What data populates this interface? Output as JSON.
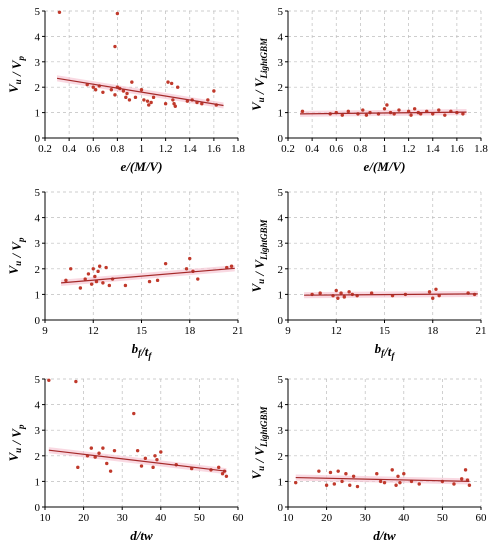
{
  "colors": {
    "point": "#c0392b",
    "trend": "#a52a2a",
    "band": "#f6c9d6",
    "grid": "#bdbdbd",
    "axis": "#000000"
  },
  "chart_data": [
    {
      "type": "scatter",
      "xlabel": "e/(M/V)",
      "ylabel": "Vu / Vp",
      "xlim": [
        0.2,
        1.8
      ],
      "ylim": [
        0,
        5
      ],
      "xticks": [
        "0.2",
        "0.4",
        "0.6",
        "0.8",
        "1",
        "1.2",
        "1.4",
        "1.6",
        "1.8"
      ],
      "yticks": [
        "0",
        "1",
        "2",
        "3",
        "4",
        "5"
      ],
      "grid": true,
      "trend": [
        [
          0.3,
          2.35
        ],
        [
          1.68,
          1.28
        ]
      ],
      "points": [
        [
          0.32,
          4.95
        ],
        [
          0.8,
          4.9
        ],
        [
          0.78,
          3.6
        ],
        [
          0.55,
          2.1
        ],
        [
          0.6,
          2.0
        ],
        [
          0.62,
          1.9
        ],
        [
          0.65,
          2.05
        ],
        [
          0.68,
          1.8
        ],
        [
          0.75,
          1.9
        ],
        [
          0.78,
          1.7
        ],
        [
          0.8,
          2.0
        ],
        [
          0.82,
          1.95
        ],
        [
          0.85,
          1.85
        ],
        [
          0.87,
          1.6
        ],
        [
          0.88,
          1.75
        ],
        [
          0.9,
          1.5
        ],
        [
          0.92,
          2.2
        ],
        [
          0.95,
          1.6
        ],
        [
          1.0,
          1.9
        ],
        [
          1.02,
          1.5
        ],
        [
          1.05,
          1.45
        ],
        [
          1.06,
          1.3
        ],
        [
          1.08,
          1.4
        ],
        [
          1.1,
          1.6
        ],
        [
          1.2,
          1.35
        ],
        [
          1.22,
          2.2
        ],
        [
          1.25,
          2.15
        ],
        [
          1.26,
          1.5
        ],
        [
          1.27,
          1.35
        ],
        [
          1.28,
          1.25
        ],
        [
          1.3,
          2.0
        ],
        [
          1.38,
          1.45
        ],
        [
          1.42,
          1.5
        ],
        [
          1.46,
          1.4
        ],
        [
          1.5,
          1.35
        ],
        [
          1.55,
          1.5
        ],
        [
          1.6,
          1.85
        ],
        [
          1.62,
          1.3
        ]
      ]
    },
    {
      "type": "scatter",
      "xlabel": "e/(M/V)",
      "ylabel": "Vu / VLightGBM",
      "xlim": [
        0.2,
        1.8
      ],
      "ylim": [
        0,
        5
      ],
      "xticks": [
        "0.2",
        "0.4",
        "0.6",
        "0.8",
        "1",
        "1.2",
        "1.4",
        "1.6",
        "1.8"
      ],
      "yticks": [
        "0",
        "1",
        "2",
        "3",
        "4",
        "5"
      ],
      "grid": true,
      "trend": [
        [
          0.3,
          0.95
        ],
        [
          1.68,
          1.02
        ]
      ],
      "points": [
        [
          0.32,
          1.05
        ],
        [
          0.55,
          0.95
        ],
        [
          0.6,
          1.0
        ],
        [
          0.65,
          0.9
        ],
        [
          0.7,
          1.05
        ],
        [
          0.78,
          0.95
        ],
        [
          0.82,
          1.1
        ],
        [
          0.85,
          0.9
        ],
        [
          0.88,
          1.0
        ],
        [
          0.95,
          0.95
        ],
        [
          1.0,
          1.15
        ],
        [
          1.02,
          1.3
        ],
        [
          1.05,
          1.0
        ],
        [
          1.08,
          0.95
        ],
        [
          1.12,
          1.1
        ],
        [
          1.2,
          1.05
        ],
        [
          1.22,
          0.9
        ],
        [
          1.25,
          1.15
        ],
        [
          1.28,
          1.0
        ],
        [
          1.3,
          0.95
        ],
        [
          1.35,
          1.05
        ],
        [
          1.4,
          0.95
        ],
        [
          1.45,
          1.1
        ],
        [
          1.5,
          0.9
        ],
        [
          1.55,
          1.05
        ],
        [
          1.6,
          1.0
        ],
        [
          1.65,
          0.95
        ]
      ]
    },
    {
      "type": "scatter",
      "xlabel": "bf/tf",
      "ylabel": "Vu / Vp",
      "xlim": [
        9,
        21
      ],
      "ylim": [
        0,
        5
      ],
      "xticks": [
        "9",
        "12",
        "15",
        "18",
        "21"
      ],
      "yticks": [
        "0",
        "1",
        "2",
        "3",
        "4",
        "5"
      ],
      "grid": true,
      "trend": [
        [
          10.0,
          1.45
        ],
        [
          20.8,
          2.02
        ]
      ],
      "points": [
        [
          10.3,
          1.55
        ],
        [
          10.6,
          2.0
        ],
        [
          11.2,
          1.25
        ],
        [
          11.5,
          1.6
        ],
        [
          11.7,
          1.8
        ],
        [
          11.9,
          1.4
        ],
        [
          12.0,
          2.0
        ],
        [
          12.1,
          1.7
        ],
        [
          12.2,
          1.5
        ],
        [
          12.3,
          1.9
        ],
        [
          12.4,
          2.1
        ],
        [
          12.6,
          1.45
        ],
        [
          12.8,
          2.05
        ],
        [
          13.0,
          1.35
        ],
        [
          13.2,
          1.6
        ],
        [
          14.0,
          1.35
        ],
        [
          15.5,
          1.5
        ],
        [
          16.0,
          1.55
        ],
        [
          16.5,
          2.2
        ],
        [
          17.8,
          2.0
        ],
        [
          18.0,
          2.4
        ],
        [
          18.2,
          1.9
        ],
        [
          18.5,
          1.6
        ],
        [
          20.3,
          2.05
        ],
        [
          20.6,
          2.1
        ]
      ]
    },
    {
      "type": "scatter",
      "xlabel": "bf/tf",
      "ylabel": "Vu / VLightGBM",
      "xlim": [
        9,
        21
      ],
      "ylim": [
        0,
        5
      ],
      "xticks": [
        "9",
        "12",
        "15",
        "18",
        "21"
      ],
      "yticks": [
        "0",
        "1",
        "2",
        "3",
        "4",
        "5"
      ],
      "grid": true,
      "trend": [
        [
          10.0,
          0.97
        ],
        [
          20.8,
          1.02
        ]
      ],
      "points": [
        [
          10.5,
          1.0
        ],
        [
          11.0,
          1.05
        ],
        [
          11.8,
          0.95
        ],
        [
          12.0,
          1.15
        ],
        [
          12.1,
          0.85
        ],
        [
          12.3,
          1.05
        ],
        [
          12.5,
          0.9
        ],
        [
          12.8,
          1.1
        ],
        [
          13.0,
          1.0
        ],
        [
          13.3,
          0.95
        ],
        [
          14.2,
          1.05
        ],
        [
          15.5,
          0.95
        ],
        [
          16.3,
          1.0
        ],
        [
          17.8,
          1.1
        ],
        [
          18.0,
          0.85
        ],
        [
          18.2,
          1.2
        ],
        [
          18.4,
          0.95
        ],
        [
          20.2,
          1.05
        ],
        [
          20.6,
          1.0
        ]
      ]
    },
    {
      "type": "scatter",
      "xlabel": "d/tw",
      "ylabel": "Vu / Vp",
      "xlim": [
        10,
        60
      ],
      "ylim": [
        0,
        5
      ],
      "xticks": [
        "10",
        "20",
        "30",
        "40",
        "50",
        "60"
      ],
      "yticks": [
        "0",
        "1",
        "2",
        "3",
        "4",
        "5"
      ],
      "grid": true,
      "trend": [
        [
          11,
          2.22
        ],
        [
          57,
          1.4
        ]
      ],
      "points": [
        [
          11,
          4.95
        ],
        [
          18,
          4.9
        ],
        [
          18.5,
          1.55
        ],
        [
          21,
          2.0
        ],
        [
          22,
          2.3
        ],
        [
          23,
          1.95
        ],
        [
          24,
          2.1
        ],
        [
          25,
          2.3
        ],
        [
          26,
          1.7
        ],
        [
          27,
          1.4
        ],
        [
          28,
          2.2
        ],
        [
          33,
          3.65
        ],
        [
          34,
          2.2
        ],
        [
          35,
          1.6
        ],
        [
          36,
          1.9
        ],
        [
          38,
          1.55
        ],
        [
          38.5,
          2.0
        ],
        [
          39,
          1.85
        ],
        [
          40,
          2.15
        ],
        [
          44,
          1.65
        ],
        [
          48,
          1.5
        ],
        [
          53,
          1.45
        ],
        [
          55,
          1.55
        ],
        [
          56,
          1.3
        ],
        [
          56.5,
          1.4
        ],
        [
          57,
          1.2
        ]
      ]
    },
    {
      "type": "scatter",
      "xlabel": "d/tw",
      "ylabel": "Vu / VLightGBM",
      "xlim": [
        10,
        60
      ],
      "ylim": [
        0,
        5
      ],
      "xticks": [
        "10",
        "20",
        "30",
        "40",
        "50",
        "60"
      ],
      "yticks": [
        "0",
        "1",
        "2",
        "3",
        "4",
        "5"
      ],
      "grid": true,
      "trend": [
        [
          12,
          1.15
        ],
        [
          57,
          1.0
        ]
      ],
      "points": [
        [
          12,
          0.95
        ],
        [
          18,
          1.4
        ],
        [
          20,
          0.85
        ],
        [
          21,
          1.35
        ],
        [
          22,
          0.9
        ],
        [
          23,
          1.4
        ],
        [
          24,
          1.0
        ],
        [
          25,
          1.3
        ],
        [
          26,
          0.85
        ],
        [
          27,
          1.2
        ],
        [
          28,
          0.8
        ],
        [
          33,
          1.3
        ],
        [
          34,
          1.0
        ],
        [
          35,
          0.95
        ],
        [
          37,
          1.45
        ],
        [
          38,
          0.85
        ],
        [
          38.5,
          1.2
        ],
        [
          39,
          0.95
        ],
        [
          40,
          1.3
        ],
        [
          42,
          1.0
        ],
        [
          44,
          0.9
        ],
        [
          50,
          1.0
        ],
        [
          53,
          0.9
        ],
        [
          55,
          1.1
        ],
        [
          56,
          1.45
        ],
        [
          56.5,
          1.05
        ],
        [
          57,
          0.85
        ]
      ]
    }
  ]
}
